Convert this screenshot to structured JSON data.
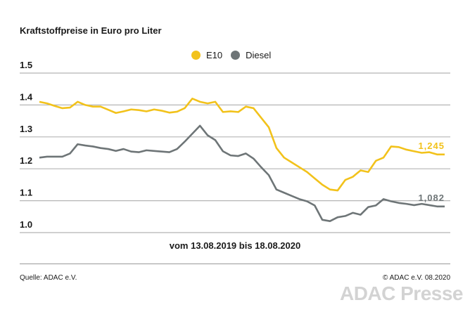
{
  "chart_data": {
    "type": "line",
    "title": "Kraftstoffpreise in Euro pro Liter",
    "period_label": "vom 13.08.2019 bis 18.08.2020",
    "ylim": [
      1.0,
      1.5
    ],
    "yticks": [
      "1.0",
      "1.1",
      "1.2",
      "1.3",
      "1.4",
      "1.5"
    ],
    "grid": true,
    "legend_position": "top-center",
    "series": [
      {
        "name": "E10",
        "color": "#f2c21b",
        "end_label": "1,245",
        "values": [
          1.41,
          1.405,
          1.397,
          1.39,
          1.392,
          1.41,
          1.4,
          1.395,
          1.395,
          1.385,
          1.375,
          1.38,
          1.386,
          1.384,
          1.38,
          1.386,
          1.382,
          1.376,
          1.379,
          1.39,
          1.42,
          1.41,
          1.405,
          1.41,
          1.378,
          1.38,
          1.378,
          1.395,
          1.39,
          1.36,
          1.33,
          1.265,
          1.235,
          1.22,
          1.205,
          1.19,
          1.17,
          1.15,
          1.135,
          1.132,
          1.165,
          1.175,
          1.195,
          1.19,
          1.225,
          1.235,
          1.27,
          1.268,
          1.26,
          1.255,
          1.25,
          1.252,
          1.245,
          1.245
        ]
      },
      {
        "name": "Diesel",
        "color": "#6e7577",
        "end_label": "1,082",
        "values": [
          1.235,
          1.238,
          1.238,
          1.238,
          1.248,
          1.277,
          1.273,
          1.27,
          1.265,
          1.262,
          1.256,
          1.262,
          1.254,
          1.252,
          1.258,
          1.256,
          1.254,
          1.252,
          1.262,
          1.285,
          1.31,
          1.335,
          1.305,
          1.29,
          1.255,
          1.242,
          1.24,
          1.248,
          1.232,
          1.205,
          1.18,
          1.135,
          1.125,
          1.115,
          1.105,
          1.098,
          1.085,
          1.04,
          1.036,
          1.048,
          1.052,
          1.062,
          1.056,
          1.08,
          1.085,
          1.105,
          1.098,
          1.093,
          1.09,
          1.086,
          1.09,
          1.086,
          1.082,
          1.082
        ]
      }
    ]
  },
  "footer": {
    "source": "Quelle: ADAC e.V.",
    "copyright": "© ADAC e.V. 08.2020",
    "watermark": "ADAC Presse"
  }
}
